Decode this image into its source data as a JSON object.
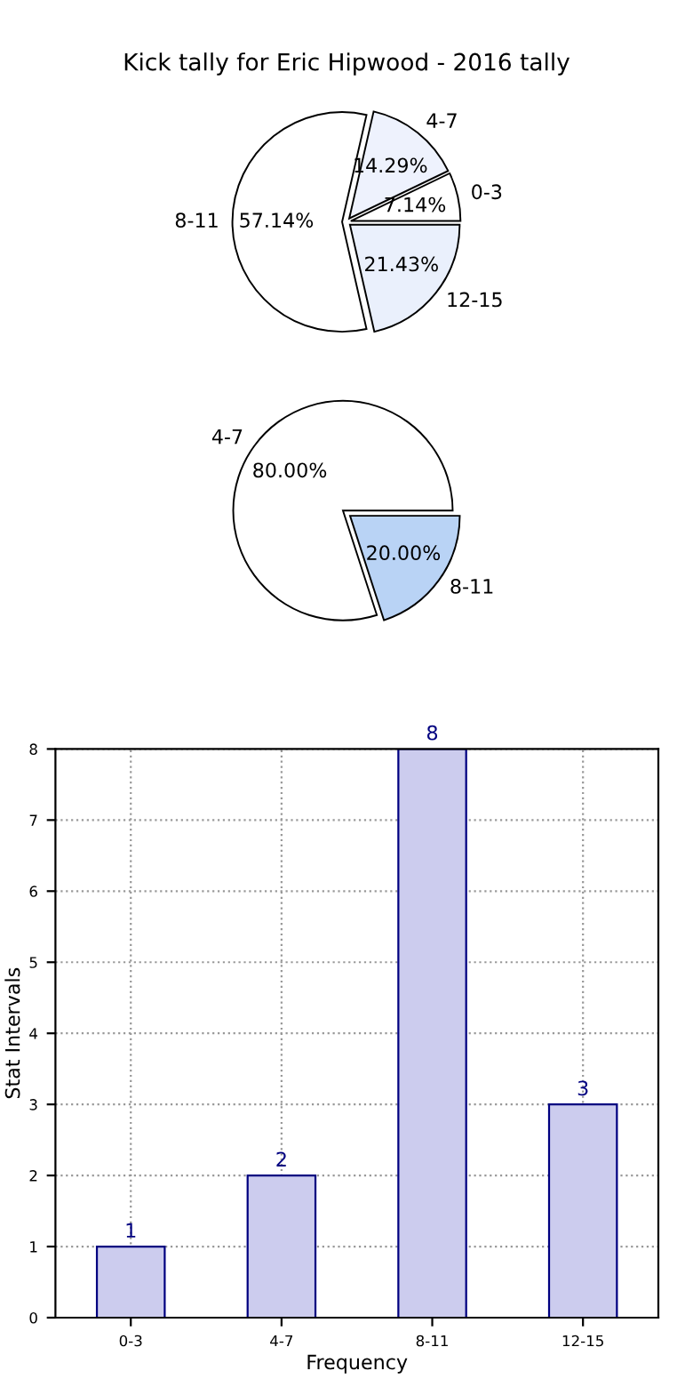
{
  "chart_data": [
    {
      "type": "pie",
      "title": "Kick tally for Eric Hipwood - 2016 tally",
      "categories": [
        "0-3",
        "4-7",
        "8-11",
        "12-15"
      ],
      "values": [
        7.14,
        14.29,
        57.14,
        21.43
      ],
      "value_labels": [
        "7.14%",
        "14.29%",
        "57.14%",
        "21.43%"
      ],
      "colors": [
        "#ffffff",
        "#eef2fd",
        "#ffffff",
        "#eaf0fc"
      ]
    },
    {
      "type": "pie",
      "categories": [
        "4-7",
        "8-11"
      ],
      "values": [
        80.0,
        20.0
      ],
      "value_labels": [
        "80.00%",
        "20.00%"
      ],
      "colors": [
        "#ffffff",
        "#b9d3f5"
      ]
    },
    {
      "type": "bar",
      "categories": [
        "0-3",
        "4-7",
        "8-11",
        "12-15"
      ],
      "values": [
        1,
        2,
        8,
        3
      ],
      "color": "#ccccee",
      "xlabel": "Frequency",
      "ylabel": "Stat Intervals",
      "ylim": [
        0,
        8
      ],
      "yticks": [
        0,
        1,
        2,
        3,
        4,
        5,
        6,
        7,
        8
      ],
      "grid": true,
      "data_labels": true
    }
  ]
}
